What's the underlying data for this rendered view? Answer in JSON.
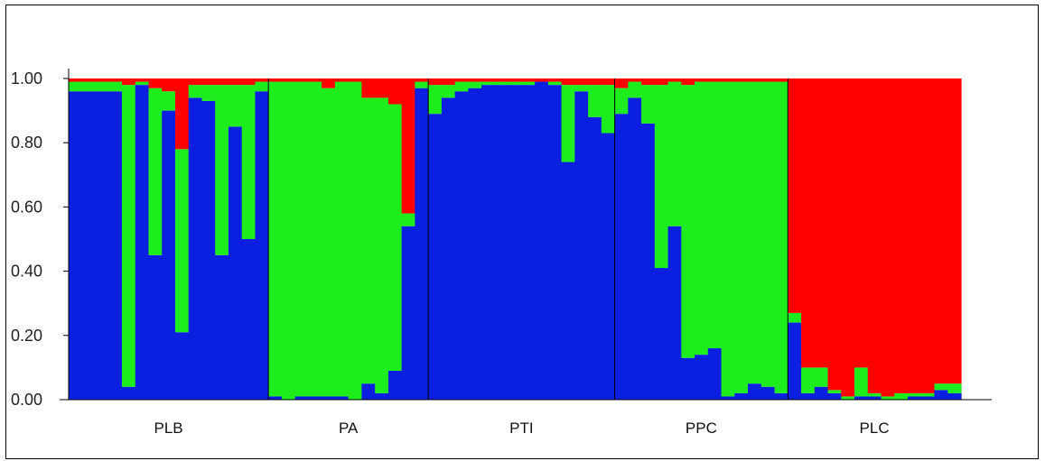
{
  "chart_data": {
    "type": "bar",
    "stacked": true,
    "title": "",
    "xlabel": "",
    "ylabel": "",
    "ylim": [
      0,
      1.0
    ],
    "y_ticks": [
      "0.00",
      "0.20",
      "0.40",
      "0.60",
      "0.80",
      "1.00"
    ],
    "grid": false,
    "legend": "none",
    "colors": {
      "blue": "#0a1fe0",
      "green": "#1dec1d",
      "red": "#ff0000"
    },
    "series_order": [
      "blue",
      "green",
      "red"
    ],
    "groups": [
      {
        "label": "PLB",
        "individuals": [
          [
            0.96,
            0.03,
            0.01
          ],
          [
            0.96,
            0.03,
            0.01
          ],
          [
            0.96,
            0.03,
            0.01
          ],
          [
            0.96,
            0.03,
            0.01
          ],
          [
            0.04,
            0.94,
            0.02
          ],
          [
            0.98,
            0.01,
            0.01
          ],
          [
            0.45,
            0.52,
            0.03
          ],
          [
            0.9,
            0.06,
            0.04
          ],
          [
            0.21,
            0.57,
            0.22
          ],
          [
            0.94,
            0.04,
            0.02
          ],
          [
            0.93,
            0.05,
            0.02
          ],
          [
            0.45,
            0.53,
            0.02
          ],
          [
            0.85,
            0.13,
            0.02
          ],
          [
            0.5,
            0.48,
            0.02
          ],
          [
            0.96,
            0.03,
            0.01
          ]
        ]
      },
      {
        "label": "PA",
        "individuals": [
          [
            0.01,
            0.98,
            0.01
          ],
          [
            0.0,
            0.99,
            0.01
          ],
          [
            0.01,
            0.98,
            0.01
          ],
          [
            0.01,
            0.98,
            0.01
          ],
          [
            0.01,
            0.96,
            0.03
          ],
          [
            0.01,
            0.98,
            0.01
          ],
          [
            0.0,
            0.99,
            0.01
          ],
          [
            0.05,
            0.89,
            0.06
          ],
          [
            0.02,
            0.92,
            0.06
          ],
          [
            0.09,
            0.83,
            0.08
          ],
          [
            0.54,
            0.04,
            0.42
          ],
          [
            0.97,
            0.02,
            0.01
          ]
        ]
      },
      {
        "label": "PTI",
        "individuals": [
          [
            0.89,
            0.09,
            0.02
          ],
          [
            0.94,
            0.04,
            0.02
          ],
          [
            0.96,
            0.03,
            0.01
          ],
          [
            0.97,
            0.02,
            0.01
          ],
          [
            0.98,
            0.01,
            0.01
          ],
          [
            0.98,
            0.01,
            0.01
          ],
          [
            0.98,
            0.01,
            0.01
          ],
          [
            0.98,
            0.01,
            0.01
          ],
          [
            0.99,
            0.0,
            0.01
          ],
          [
            0.98,
            0.01,
            0.01
          ],
          [
            0.74,
            0.24,
            0.02
          ],
          [
            0.96,
            0.02,
            0.02
          ],
          [
            0.88,
            0.1,
            0.02
          ],
          [
            0.83,
            0.15,
            0.02
          ]
        ]
      },
      {
        "label": "PPC",
        "individuals": [
          [
            0.89,
            0.08,
            0.03
          ],
          [
            0.94,
            0.05,
            0.01
          ],
          [
            0.86,
            0.12,
            0.02
          ],
          [
            0.41,
            0.57,
            0.02
          ],
          [
            0.54,
            0.45,
            0.01
          ],
          [
            0.13,
            0.85,
            0.02
          ],
          [
            0.14,
            0.85,
            0.01
          ],
          [
            0.16,
            0.83,
            0.01
          ],
          [
            0.01,
            0.98,
            0.01
          ],
          [
            0.02,
            0.97,
            0.01
          ],
          [
            0.05,
            0.94,
            0.01
          ],
          [
            0.04,
            0.95,
            0.01
          ],
          [
            0.02,
            0.97,
            0.01
          ]
        ]
      },
      {
        "label": "PLC",
        "individuals": [
          [
            0.24,
            0.03,
            0.73
          ],
          [
            0.02,
            0.08,
            0.9
          ],
          [
            0.04,
            0.06,
            0.9
          ],
          [
            0.02,
            0.01,
            0.97
          ],
          [
            0.0,
            0.01,
            0.99
          ],
          [
            0.01,
            0.09,
            0.9
          ],
          [
            0.01,
            0.01,
            0.98
          ],
          [
            0.0,
            0.01,
            0.99
          ],
          [
            0.0,
            0.02,
            0.98
          ],
          [
            0.01,
            0.01,
            0.98
          ],
          [
            0.01,
            0.01,
            0.98
          ],
          [
            0.03,
            0.02,
            0.95
          ],
          [
            0.02,
            0.03,
            0.95
          ]
        ]
      }
    ]
  }
}
